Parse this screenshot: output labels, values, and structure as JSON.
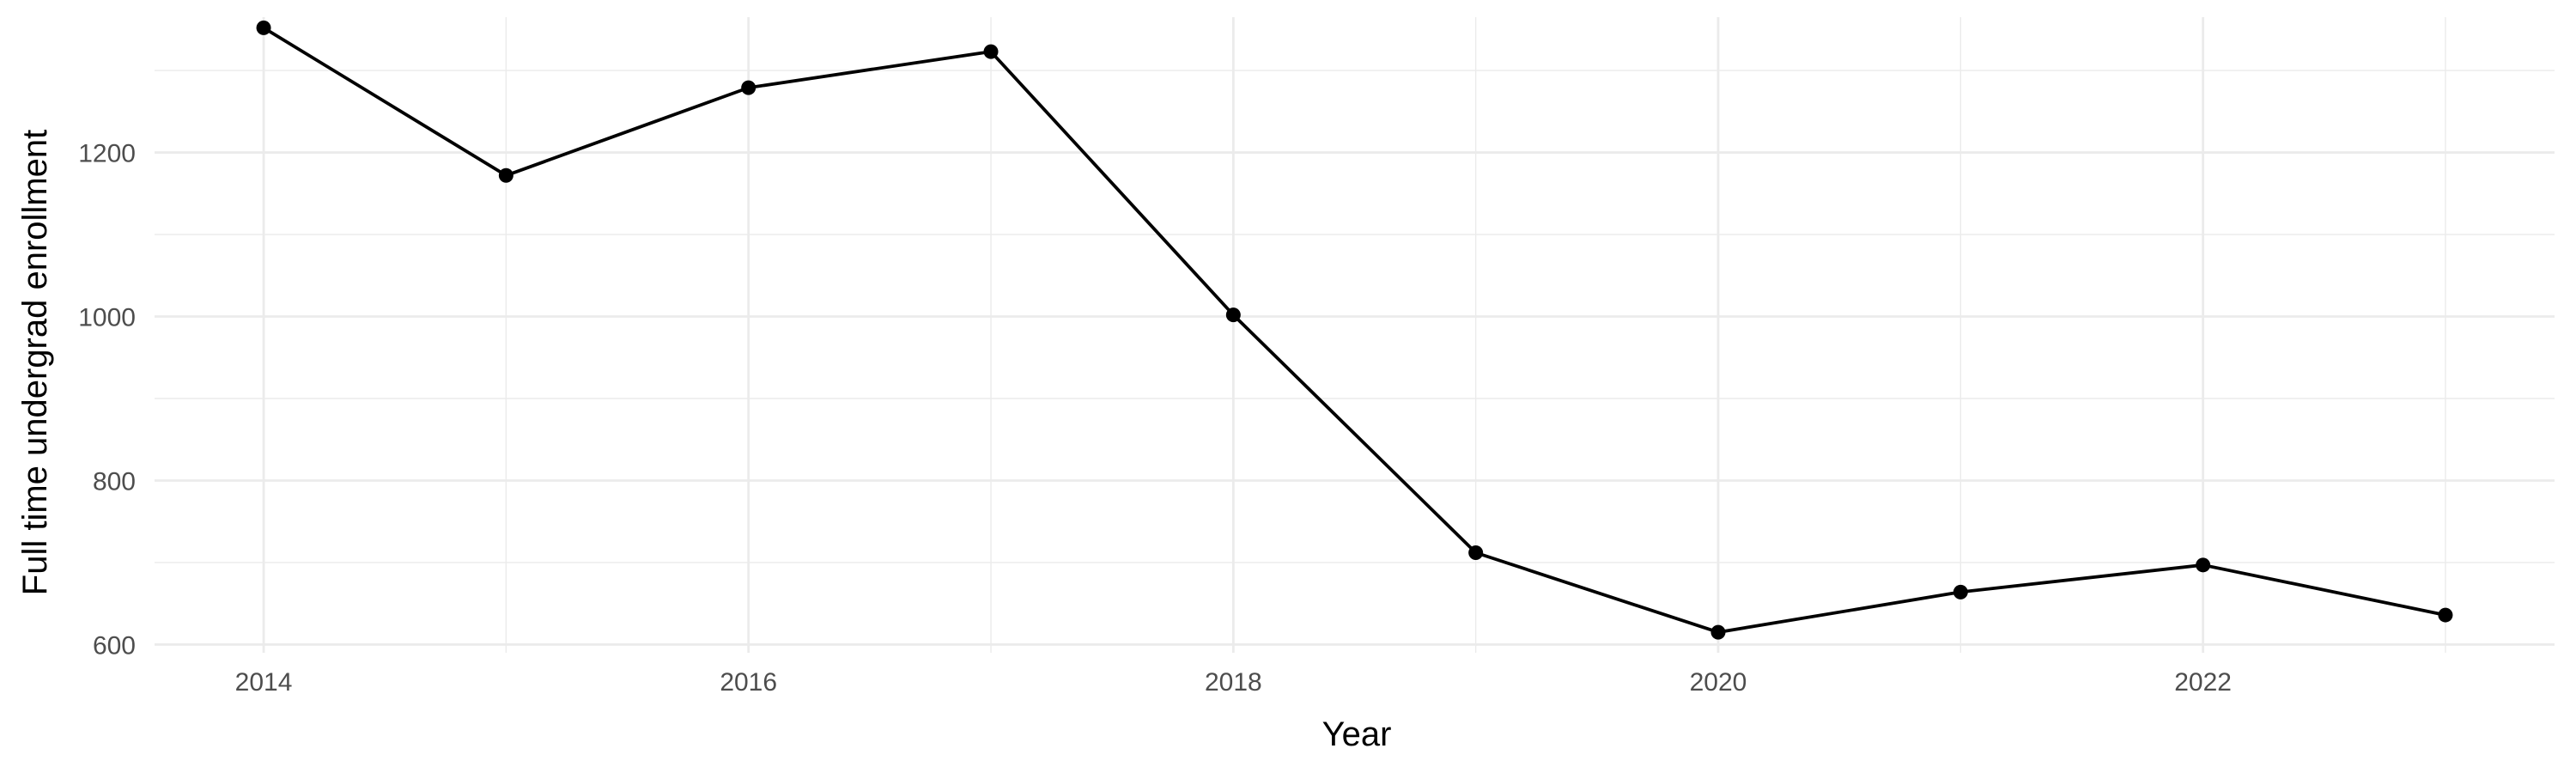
{
  "chart_data": {
    "type": "line",
    "xlabel": "Year",
    "ylabel": "Full time undergrad enrollment",
    "xlim": [
      2013.55,
      2023.45
    ],
    "ylim": [
      590,
      1365
    ],
    "x_ticks": [
      2014,
      2016,
      2018,
      2020,
      2022
    ],
    "x_tick_labels": [
      "2014",
      "2016",
      "2018",
      "2020",
      "2022"
    ],
    "x_minor_ticks": [
      2015,
      2017,
      2019,
      2021,
      2023
    ],
    "y_ticks": [
      600,
      800,
      1000,
      1200
    ],
    "y_tick_labels": [
      "600",
      "800",
      "1000",
      "1200"
    ],
    "y_minor_ticks": [
      700,
      900,
      1100,
      1300
    ],
    "grid": true,
    "legend": "none",
    "x": [
      2014,
      2015,
      2016,
      2017,
      2018,
      2019,
      2020,
      2021,
      2022,
      2023
    ],
    "y": [
      1352,
      1172,
      1279,
      1323,
      1002,
      712,
      615,
      664,
      697,
      636
    ],
    "line_color": "#000000",
    "point_color": "#000000"
  }
}
